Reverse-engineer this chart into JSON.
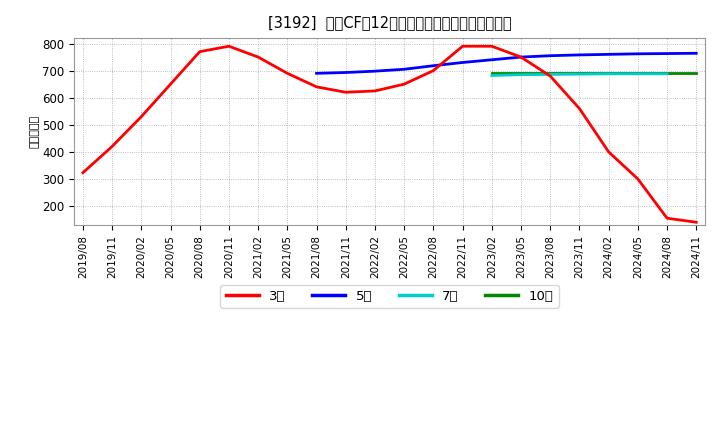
{
  "title": "[3192]  投賄CFの12か月移動合計の標準偏差の推移",
  "ylabel": "（百万円）",
  "ylim": [
    130,
    820
  ],
  "yticks": [
    200,
    300,
    400,
    500,
    600,
    700,
    800
  ],
  "background_color": "#ffffff",
  "plot_bg_color": "#ffffff",
  "grid_color": "#aaaaaa",
  "legend_labels": [
    "3年",
    "5年",
    "7年",
    "10年"
  ],
  "legend_colors": [
    "#ff0000",
    "#0000ff",
    "#00cccc",
    "#008800"
  ],
  "x_labels": [
    "2019/08",
    "2019/11",
    "2020/02",
    "2020/05",
    "2020/08",
    "2020/11",
    "2021/02",
    "2021/05",
    "2021/08",
    "2021/11",
    "2022/02",
    "2022/05",
    "2022/08",
    "2022/11",
    "2023/02",
    "2023/05",
    "2023/08",
    "2023/11",
    "2024/02",
    "2024/05",
    "2024/08",
    "2024/11"
  ],
  "series_3y": {
    "x": [
      0,
      1,
      2,
      3,
      4,
      5,
      6,
      7,
      8,
      9,
      10,
      11,
      12,
      13,
      14,
      15,
      16,
      17,
      18,
      19,
      20,
      21
    ],
    "y": [
      323,
      420,
      530,
      650,
      770,
      790,
      750,
      690,
      640,
      620,
      625,
      650,
      700,
      790,
      790,
      750,
      680,
      560,
      400,
      300,
      155,
      140
    ]
  },
  "series_5y": {
    "x": [
      8,
      9,
      10,
      11,
      12,
      13,
      14,
      15,
      16,
      17,
      18,
      19,
      20,
      21
    ],
    "y": [
      690,
      693,
      698,
      705,
      718,
      730,
      740,
      750,
      755,
      758,
      760,
      762,
      763,
      764
    ]
  },
  "series_7y": {
    "x": [
      14,
      15,
      16,
      17,
      18,
      19,
      20
    ],
    "y": [
      682,
      685,
      686,
      687,
      688,
      688,
      688
    ]
  },
  "series_10y": {
    "x": [
      14,
      15,
      16,
      17,
      18,
      19,
      20,
      21
    ],
    "y": [
      692,
      692,
      692,
      692,
      692,
      692,
      692,
      692
    ]
  }
}
